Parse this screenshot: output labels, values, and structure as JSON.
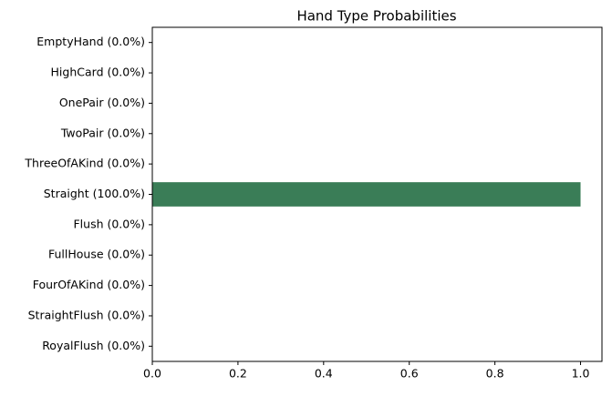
{
  "chart_data": {
    "type": "barh",
    "title": "Hand Type Probabilities",
    "categories": [
      "EmptyHand (0.0%)",
      "HighCard (0.0%)",
      "OnePair (0.0%)",
      "TwoPair (0.0%)",
      "ThreeOfAKind (0.0%)",
      "Straight (100.0%)",
      "Flush (0.0%)",
      "FullHouse (0.0%)",
      "FourOfAKind (0.0%)",
      "StraightFlush (0.0%)",
      "RoyalFlush (0.0%)"
    ],
    "values": [
      0,
      0,
      0,
      0,
      0,
      1,
      0,
      0,
      0,
      0,
      0
    ],
    "color": "#3a7d57",
    "xlim": [
      0,
      1.05
    ],
    "xticks": [
      {
        "value": 0,
        "label": "0.0"
      },
      0.2,
      0.4,
      0.6,
      0.8,
      {
        "value": 1,
        "label": "1.0"
      }
    ]
  }
}
